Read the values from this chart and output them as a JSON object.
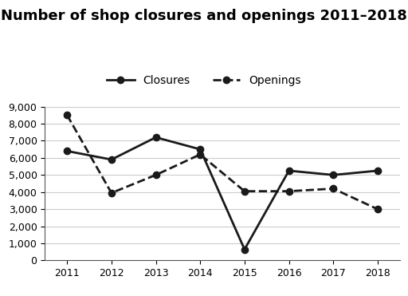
{
  "title": "Number of shop closures and openings 2011–2018",
  "years": [
    2011,
    2012,
    2013,
    2014,
    2015,
    2016,
    2017,
    2018
  ],
  "closures": [
    6400,
    5900,
    7200,
    6500,
    650,
    5250,
    5000,
    5250
  ],
  "openings": [
    8500,
    3950,
    5000,
    6200,
    4050,
    4050,
    4200,
    3000
  ],
  "closures_label": "Closures",
  "openings_label": "Openings",
  "line_color": "#1a1a1a",
  "ylim": [
    0,
    9000
  ],
  "yticks": [
    0,
    1000,
    2000,
    3000,
    4000,
    5000,
    6000,
    7000,
    8000,
    9000
  ],
  "ytick_labels": [
    "0",
    "1,000",
    "2,000",
    "3,000",
    "4,000",
    "5,000",
    "6,000",
    "7,000",
    "8,000",
    "9,000"
  ],
  "background_color": "#ffffff",
  "grid_color": "#cccccc",
  "title_fontsize": 13,
  "legend_fontsize": 10,
  "tick_fontsize": 9
}
